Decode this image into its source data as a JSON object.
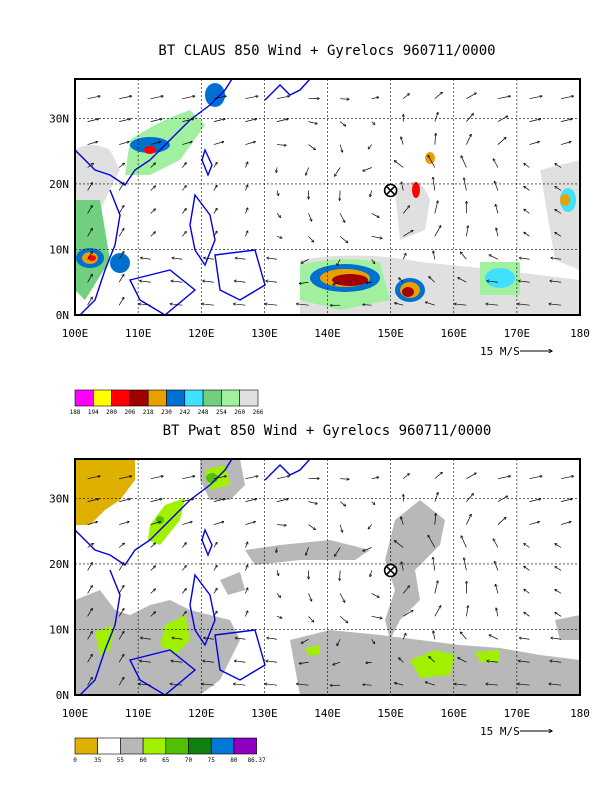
{
  "chart_data": [
    {
      "type": "vector-map",
      "title": "BT CLAUS 850 Wind + Gyrelocs 960711/0000",
      "x_ticks": [
        "100E",
        "110E",
        "120E",
        "130E",
        "140E",
        "150E",
        "160E",
        "170E",
        "180"
      ],
      "y_ticks": [
        "0N",
        "10N",
        "20N",
        "30N"
      ],
      "xlim": [
        100,
        180
      ],
      "ylim": [
        0,
        36
      ],
      "grid": true,
      "reference_vector": {
        "label": "15 M/S",
        "speed": 15
      },
      "gyre_location": {
        "lon": 150,
        "lat": 19
      },
      "colorbar": {
        "labels": [
          "188",
          "194",
          "200",
          "206",
          "218",
          "230",
          "242",
          "248",
          "254",
          "260",
          "266"
        ],
        "colors": [
          "#ff00ff",
          "#ffff00",
          "#ff0000",
          "#a00000",
          "#e8a000",
          "#0070d0",
          "#40e0ff",
          "#70d080",
          "#a0f0a0",
          "#e0e0e0"
        ]
      },
      "shaded_regions": [
        {
          "lon": [
            109,
            125
          ],
          "lat": [
            20,
            35
          ],
          "level": "242"
        },
        {
          "lon": [
            138,
            150
          ],
          "lat": [
            3,
            8
          ],
          "level": "206"
        },
        {
          "lon": [
            152,
            158
          ],
          "lat": [
            3,
            6
          ],
          "level": "206"
        },
        {
          "lon": [
            164,
            170
          ],
          "lat": [
            4,
            6
          ],
          "level": "242"
        },
        {
          "lon": [
            100,
            112
          ],
          "lat": [
            6,
            12
          ],
          "level": "206"
        },
        {
          "lon": [
            154,
            157
          ],
          "lat": [
            18,
            24
          ],
          "level": "218"
        }
      ]
    },
    {
      "type": "vector-map",
      "title": "BT Pwat 850 Wind + Gyrelocs 960711/0000",
      "x_ticks": [
        "100E",
        "110E",
        "120E",
        "130E",
        "140E",
        "150E",
        "160E",
        "170E",
        "180"
      ],
      "y_ticks": [
        "0N",
        "10N",
        "20N",
        "30N"
      ],
      "xlim": [
        100,
        180
      ],
      "ylim": [
        0,
        36
      ],
      "grid": true,
      "reference_vector": {
        "label": "15 M/S",
        "speed": 15
      },
      "gyre_location": {
        "lon": 150,
        "lat": 19
      },
      "colorbar": {
        "labels": [
          "0",
          "35",
          "55",
          "60",
          "65",
          "70",
          "75",
          "80",
          "86.37"
        ],
        "colors": [
          "#e0b000",
          "#ffffff",
          "#b8b8b8",
          "#a0f000",
          "#50c000",
          "#108010",
          "#0078d8",
          "#9000c0"
        ]
      },
      "shaded_regions": [
        {
          "lon": [
            100,
            110
          ],
          "lat": [
            28,
            36
          ],
          "level": "0"
        },
        {
          "lon": [
            100,
            134
          ],
          "lat": [
            0,
            12
          ],
          "level": "55"
        },
        {
          "lon": [
            148,
            160
          ],
          "lat": [
            4,
            28
          ],
          "level": "55"
        },
        {
          "lon": [
            134,
            180
          ],
          "lat": [
            0,
            8
          ],
          "level": "55"
        },
        {
          "lon": [
            155,
            160
          ],
          "lat": [
            2,
            4
          ],
          "level": "60"
        },
        {
          "lon": [
            100,
            105
          ],
          "lat": [
            7,
            10
          ],
          "level": "60"
        },
        {
          "lon": [
            112,
            115
          ],
          "lat": [
            26,
            30
          ],
          "level": "60"
        }
      ]
    }
  ]
}
